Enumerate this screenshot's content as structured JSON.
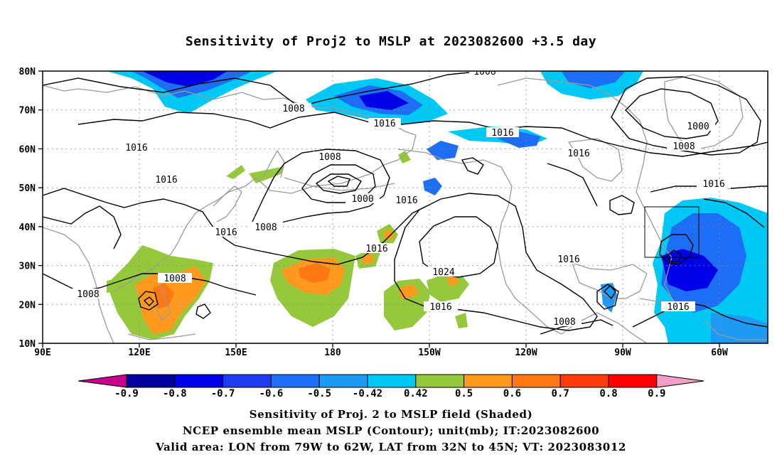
{
  "title": "Sensitivity of Proj2 to MSLP at 2023082600 +3.5 day",
  "lat_labels": [
    "80N",
    "70N",
    "60N",
    "50N",
    "40N",
    "30N",
    "20N",
    "10N"
  ],
  "lon_labels": [
    "90E",
    "120E",
    "150E",
    "180",
    "150W",
    "120W",
    "90W",
    "60W"
  ],
  "contour_labels": [
    "1008",
    "1008",
    "1016",
    "1016",
    "1000",
    "1008",
    "1016",
    "1008",
    "1000",
    "1016",
    "1016",
    "1008",
    "1016",
    "1016",
    "1024",
    "1016",
    "1008",
    "1016",
    "1016",
    "1008",
    "1016",
    "1016"
  ],
  "colorbar": {
    "labels": [
      "-0.9",
      "-0.8",
      "-0.7",
      "-0.6",
      "-0.5",
      "-0.42",
      "0.42",
      "0.5",
      "0.6",
      "0.7",
      "0.8",
      "0.9"
    ],
    "colors": {
      "below_min": "#c8008c",
      "n09": "#0000a0",
      "n08": "#0000e6",
      "n07": "#1d3cf0",
      "n06": "#1e6ef5",
      "n05": "#1e9af5",
      "n042": "#00c8f5",
      "neutral": "#ffffff",
      "p042": "#96c83c",
      "p05": "#ff9a1e",
      "p06": "#ff7814",
      "p07": "#ff3c0a",
      "p08": "#ff0000",
      "above_max": "#f0a0c8"
    }
  },
  "footer": {
    "line1": "Sensitivity of Proj. 2 to MSLP field (Shaded)",
    "line2": "NCEP ensemble mean MSLP (Contour); unit(mb); IT:2023082600",
    "line3": "Valid area: LON from 79W to 62W, LAT from 32N to 45N; VT: 2023083012"
  }
}
